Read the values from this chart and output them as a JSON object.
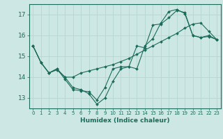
{
  "xlabel": "Humidex (Indice chaleur)",
  "bg_color": "#cde8e4",
  "line_color": "#1a6b5a",
  "grid_color": "#b8d8d4",
  "xlim": [
    -0.5,
    23.5
  ],
  "ylim": [
    12.5,
    17.5
  ],
  "yticks": [
    13,
    14,
    15,
    16,
    17
  ],
  "xticks": [
    0,
    1,
    2,
    3,
    4,
    5,
    6,
    7,
    8,
    9,
    10,
    11,
    12,
    13,
    14,
    15,
    16,
    17,
    18,
    19,
    20,
    21,
    22,
    23
  ],
  "series": [
    [
      15.5,
      14.7,
      14.2,
      14.4,
      14.0,
      13.5,
      13.4,
      13.2,
      12.7,
      13.0,
      13.8,
      14.4,
      14.5,
      15.5,
      15.4,
      16.5,
      16.55,
      16.85,
      17.2,
      17.1,
      16.0,
      15.9,
      15.95,
      15.8
    ],
    [
      15.5,
      14.7,
      14.2,
      14.4,
      13.9,
      13.4,
      13.35,
      13.3,
      12.9,
      13.5,
      14.4,
      14.5,
      14.5,
      14.4,
      15.5,
      15.85,
      16.6,
      17.15,
      17.25,
      17.05,
      16.0,
      15.9,
      16.0,
      15.8
    ],
    [
      15.5,
      14.7,
      14.2,
      14.35,
      14.0,
      14.0,
      14.2,
      14.3,
      14.4,
      14.5,
      14.6,
      14.75,
      14.9,
      15.1,
      15.3,
      15.5,
      15.7,
      15.9,
      16.1,
      16.35,
      16.55,
      16.6,
      16.2,
      15.8
    ]
  ]
}
